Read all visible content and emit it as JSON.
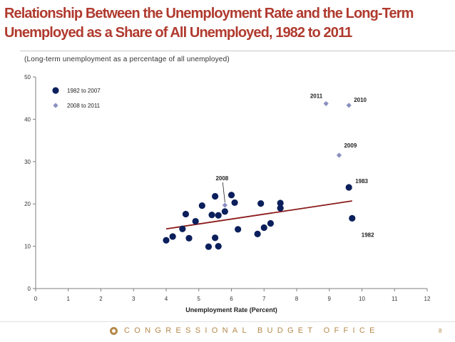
{
  "slide": {
    "title": "Relationship Between the Unemployment Rate and the Long-Term Unemployed as a Share of All Unemployed, 1982 to 2011",
    "subtitle": "(Long-term unemployment as a percentage of all unemployed)",
    "footer": "CONGRESSIONAL BUDGET OFFICE",
    "page_number": "8"
  },
  "chart_data": {
    "type": "scatter",
    "title": "Relationship Between the Unemployment Rate and the Long-Term Unemployed as a Share of All Unemployed, 1982 to 2011",
    "subtitle": "(Long-term unemployment as a percentage of all unemployed)",
    "xlabel": "Unemployment Rate (Percent)",
    "ylabel": "",
    "xlim": [
      0,
      12
    ],
    "ylim": [
      0,
      50
    ],
    "xticks": [
      0,
      1,
      2,
      3,
      4,
      5,
      6,
      7,
      8,
      9,
      10,
      11,
      12
    ],
    "yticks": [
      0,
      10,
      20,
      30,
      40,
      50
    ],
    "grid": false,
    "legend_position": "top-left",
    "series": [
      {
        "name": "1982 to 2007",
        "marker": "circle",
        "color": "#0b1f5c",
        "points": [
          {
            "x": 9.7,
            "y": 16.6,
            "label": "1982"
          },
          {
            "x": 9.6,
            "y": 23.9,
            "label": "1983"
          },
          {
            "x": 7.5,
            "y": 20.2
          },
          {
            "x": 7.2,
            "y": 15.4
          },
          {
            "x": 7.0,
            "y": 14.4
          },
          {
            "x": 6.2,
            "y": 14.0
          },
          {
            "x": 5.5,
            "y": 12.0
          },
          {
            "x": 5.3,
            "y": 9.9
          },
          {
            "x": 5.6,
            "y": 10.0
          },
          {
            "x": 6.8,
            "y": 12.9
          },
          {
            "x": 7.5,
            "y": 19.0
          },
          {
            "x": 6.9,
            "y": 20.1
          },
          {
            "x": 6.1,
            "y": 20.3
          },
          {
            "x": 5.6,
            "y": 17.3
          },
          {
            "x": 5.4,
            "y": 17.4
          },
          {
            "x": 4.9,
            "y": 15.9
          },
          {
            "x": 4.5,
            "y": 14.1
          },
          {
            "x": 4.2,
            "y": 12.3
          },
          {
            "x": 4.0,
            "y": 11.4
          },
          {
            "x": 4.7,
            "y": 11.9
          },
          {
            "x": 5.8,
            "y": 18.2
          },
          {
            "x": 6.0,
            "y": 22.1
          },
          {
            "x": 5.5,
            "y": 21.8
          },
          {
            "x": 5.1,
            "y": 19.6
          },
          {
            "x": 4.6,
            "y": 17.6
          }
        ]
      },
      {
        "name": "2008 to 2011",
        "marker": "diamond",
        "color": "#8a8fbf",
        "points": [
          {
            "x": 5.8,
            "y": 19.7,
            "label": "2008"
          },
          {
            "x": 9.3,
            "y": 31.5,
            "label": "2009"
          },
          {
            "x": 9.6,
            "y": 43.3,
            "label": "2010"
          },
          {
            "x": 8.9,
            "y": 43.7,
            "label": "2011"
          }
        ]
      }
    ],
    "trendline": {
      "color": "#8b1a1a",
      "x": [
        4.0,
        9.7
      ],
      "y": [
        14.1,
        20.7
      ]
    }
  }
}
